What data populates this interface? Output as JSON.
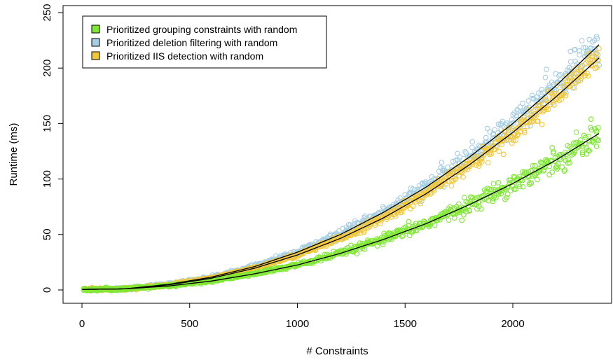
{
  "chart_data": {
    "type": "scatter",
    "title": "",
    "xlabel": "# Constraints",
    "ylabel": "Runtime (ms)",
    "xlim": [
      0,
      2400
    ],
    "ylim": [
      0,
      250
    ],
    "x_ticks": [
      0,
      500,
      1000,
      1500,
      2000
    ],
    "y_ticks": [
      0,
      50,
      100,
      150,
      200,
      250
    ],
    "x_tick_labels": [
      "0",
      "500",
      "1000",
      "1500",
      "2000"
    ],
    "y_tick_labels": [
      "0",
      "50",
      "100",
      "150",
      "200",
      "250"
    ],
    "grid": false,
    "legend_position": "top-left",
    "marker": "open-circle",
    "series": [
      {
        "name": "Prioritized grouping constraints with random",
        "color": "#7FE832",
        "fit_line_color": "#000000",
        "x": [
          0,
          200,
          400,
          600,
          800,
          1000,
          1200,
          1400,
          1600,
          1800,
          2000,
          2200,
          2400
        ],
        "y": [
          0.5,
          1.0,
          3.5,
          8.0,
          14.5,
          22.5,
          33.0,
          45.5,
          60.0,
          77.0,
          96.0,
          117.0,
          141.0
        ]
      },
      {
        "name": "Prioritized deletion filtering with random",
        "color": "#A6CEE3",
        "fit_line_color": "#000000",
        "x": [
          0,
          200,
          400,
          600,
          800,
          1000,
          1200,
          1400,
          1600,
          1800,
          2000,
          2200,
          2400
        ],
        "y": [
          0.5,
          1.0,
          5.0,
          11.5,
          21.0,
          34.0,
          50.0,
          70.0,
          93.0,
          120.0,
          150.0,
          184.0,
          221.0
        ]
      },
      {
        "name": "Prioritized IIS detection with random",
        "color": "#F2C83A",
        "fit_line_color": "#000000",
        "x": [
          0,
          200,
          400,
          600,
          800,
          1000,
          1200,
          1400,
          1600,
          1800,
          2000,
          2200,
          2400
        ],
        "y": [
          0.5,
          1.0,
          4.5,
          10.5,
          19.5,
          31.5,
          46.5,
          65.0,
          87.0,
          113.0,
          142.0,
          174.0,
          209.0
        ]
      }
    ]
  }
}
